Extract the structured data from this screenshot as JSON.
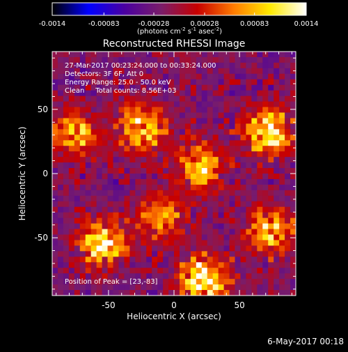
{
  "chart_data": {
    "type": "heatmap",
    "title": "Reconstructed RHESSI Image",
    "xlabel": "Heliocentric X (arcsec)",
    "ylabel": "Heliocentric Y (arcsec)",
    "xlim": [
      -93,
      93
    ],
    "ylim": [
      -95,
      95
    ],
    "x_ticks": [
      -50,
      0,
      50
    ],
    "y_ticks": [
      -50,
      0,
      50
    ],
    "colorbar": {
      "ticks": [
        "-0.0014",
        "-0.00083",
        "-0.00028",
        "0.00028",
        "0.00083",
        "0.0014"
      ],
      "min": -0.0014,
      "max": 0.0014,
      "unit_label_parts": [
        "(photons cm",
        "-2",
        " s",
        "-1",
        " asec",
        "-2",
        ")"
      ],
      "colormap": [
        "#000000",
        "#0000ff",
        "#4b00a0",
        "#7a1d6a",
        "#c80000",
        "#ff7b00",
        "#ffea00",
        "#ffffff"
      ]
    },
    "info_lines": [
      "27-Mar-2017 00:23:24.000 to 00:33:24.000",
      "Detectors: 3F 6F, Att 0",
      "Energy Range: 25.0 - 50.0 keV",
      "Clean     Total counts: 8.56E+03"
    ],
    "peak_label": "Position of Peak = [23,-83]",
    "peak_position": [
      23,
      -83
    ],
    "bright_regions": [
      {
        "x": 72,
        "y": 32,
        "value": 0.0012
      },
      {
        "x": 23,
        "y": -83,
        "value": 0.0014
      },
      {
        "x": -55,
        "y": -55,
        "value": 0.001
      },
      {
        "x": -25,
        "y": 35,
        "value": 0.0009
      },
      {
        "x": -75,
        "y": 30,
        "value": 0.0008
      },
      {
        "x": 20,
        "y": 5,
        "value": 0.0008
      },
      {
        "x": 75,
        "y": -45,
        "value": 0.0009
      },
      {
        "x": -10,
        "y": -35,
        "value": 0.0007
      }
    ],
    "background_level": -0.0002
  },
  "footer": {
    "timestamp": "6-May-2017 00:18"
  }
}
